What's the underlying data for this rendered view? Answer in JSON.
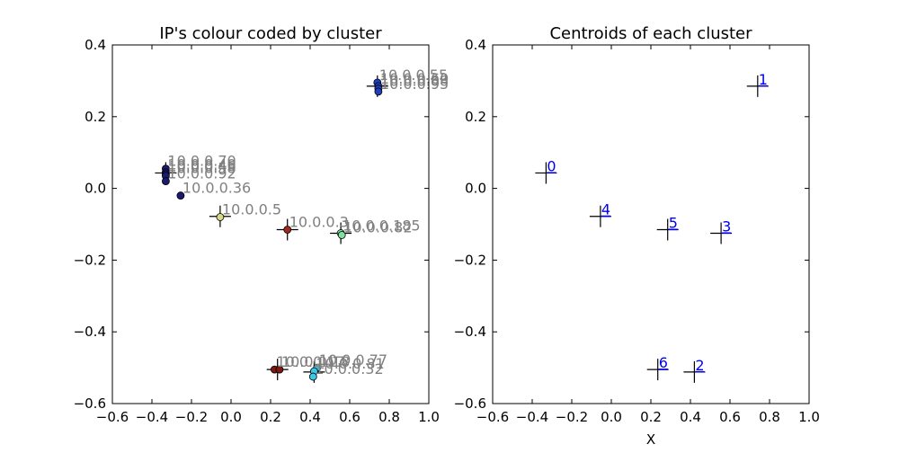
{
  "chart_data": [
    {
      "type": "scatter",
      "title": "IP's colour coded by cluster",
      "xlabel": "",
      "ylabel": "",
      "xlim": [
        -0.6,
        1.0
      ],
      "ylim": [
        -0.6,
        0.4
      ],
      "xticks": [
        "−0.6",
        "−0.4",
        "−0.2",
        "0.0",
        "0.2",
        "0.4",
        "0.6",
        "0.8",
        "1.0"
      ],
      "yticks": [
        "−0.6",
        "−0.4",
        "−0.2",
        "0.0",
        "0.2",
        "0.4"
      ],
      "grid": false,
      "colors": {
        "0": "#1a1a6e",
        "1": "#1f3fbf",
        "2": "#3ec8e8",
        "3": "#7fe0a0",
        "4": "#d8d888",
        "5": "#a02818",
        "6": "#7a1a10"
      },
      "points": [
        {
          "x": 0.74,
          "y": 0.295,
          "cluster": 1,
          "label": "10.0.0.55"
        },
        {
          "x": 0.745,
          "y": 0.285,
          "cluster": 1,
          "label": "10.0.0.60"
        },
        {
          "x": 0.745,
          "y": 0.278,
          "cluster": 1,
          "label": "10.0.0.88"
        },
        {
          "x": 0.745,
          "y": 0.27,
          "cluster": 1,
          "label": "10.0.0.95"
        },
        {
          "x": -0.33,
          "y": 0.055,
          "cluster": 0,
          "label": "10.0.0.70"
        },
        {
          "x": -0.33,
          "y": 0.045,
          "cluster": 0,
          "label": "10.0.0.40"
        },
        {
          "x": -0.33,
          "y": 0.04,
          "cluster": 0,
          "label": "10.0.0.46"
        },
        {
          "x": -0.33,
          "y": 0.035,
          "cluster": 0,
          "label": "10.0.0.58"
        },
        {
          "x": -0.33,
          "y": 0.02,
          "cluster": 0,
          "label": "10.0.0.92"
        },
        {
          "x": -0.255,
          "y": -0.02,
          "cluster": 0,
          "label": "10.0.0.36"
        },
        {
          "x": -0.055,
          "y": -0.08,
          "cluster": 4,
          "label": "10.0.0.5"
        },
        {
          "x": 0.285,
          "y": -0.115,
          "cluster": 5,
          "label": "10.0.0.3"
        },
        {
          "x": 0.555,
          "y": -0.125,
          "cluster": 3,
          "label": "10.0.0.185"
        },
        {
          "x": 0.56,
          "y": -0.13,
          "cluster": 3,
          "label": "10.0.0.82"
        },
        {
          "x": 0.22,
          "y": -0.505,
          "cluster": 6,
          "label": "10.0.0.17"
        },
        {
          "x": 0.245,
          "y": -0.505,
          "cluster": 6,
          "label": "10.0.0.18"
        },
        {
          "x": 0.435,
          "y": -0.5,
          "cluster": 2,
          "label": "10.0.0.77"
        },
        {
          "x": 0.42,
          "y": -0.51,
          "cluster": 2,
          "label": "10.0.0.81"
        },
        {
          "x": 0.415,
          "y": -0.525,
          "cluster": 2,
          "label": "10.0.0.32"
        }
      ],
      "centroids": [
        {
          "x": -0.33,
          "y": 0.043
        },
        {
          "x": 0.74,
          "y": 0.285
        },
        {
          "x": 0.42,
          "y": -0.512
        },
        {
          "x": 0.555,
          "y": -0.125
        },
        {
          "x": -0.055,
          "y": -0.078
        },
        {
          "x": 0.285,
          "y": -0.115
        },
        {
          "x": 0.235,
          "y": -0.505
        }
      ]
    },
    {
      "type": "scatter",
      "title": "Centroids of each cluster",
      "xlabel": "X",
      "ylabel": "",
      "xlim": [
        -0.6,
        1.0
      ],
      "ylim": [
        -0.6,
        0.4
      ],
      "xticks": [
        "−0.6",
        "−0.4",
        "−0.2",
        "0.0",
        "0.2",
        "0.4",
        "0.6",
        "0.8",
        "1.0"
      ],
      "yticks": [
        "−0.6",
        "−0.4",
        "−0.2",
        "0.0",
        "0.2",
        "0.4"
      ],
      "grid": false,
      "points": [
        {
          "x": -0.33,
          "y": 0.043,
          "label": "0"
        },
        {
          "x": 0.74,
          "y": 0.285,
          "label": "1"
        },
        {
          "x": 0.42,
          "y": -0.512,
          "label": "2"
        },
        {
          "x": 0.555,
          "y": -0.125,
          "label": "3"
        },
        {
          "x": -0.055,
          "y": -0.078,
          "label": "4"
        },
        {
          "x": 0.285,
          "y": -0.115,
          "label": "5"
        },
        {
          "x": 0.235,
          "y": -0.505,
          "label": "6"
        }
      ]
    }
  ]
}
